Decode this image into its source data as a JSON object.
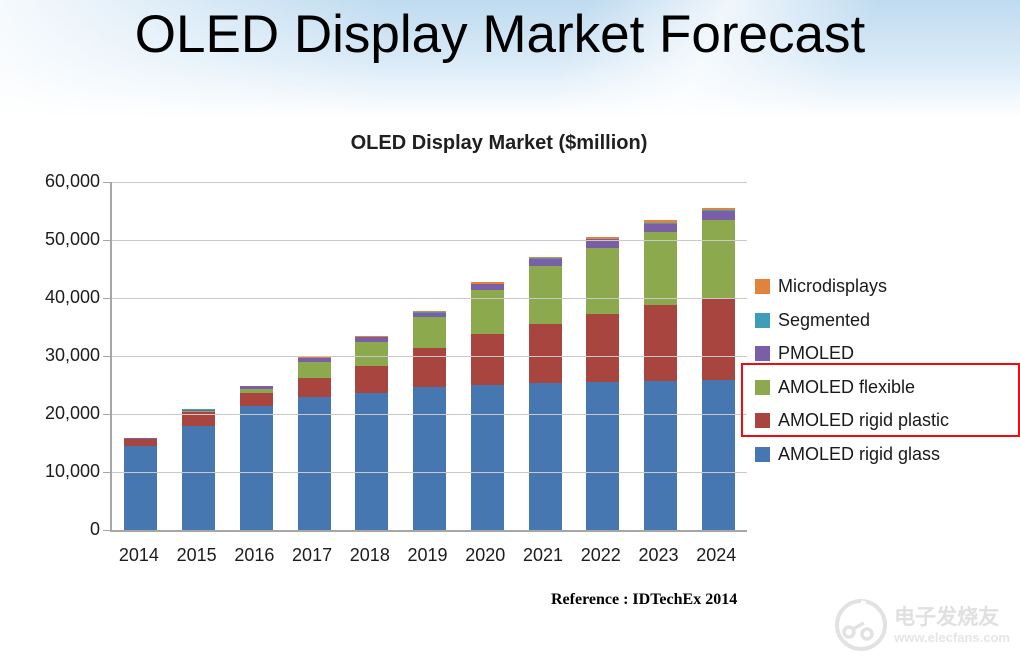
{
  "slide": {
    "title": "OLED Display Market Forecast"
  },
  "chart_data": {
    "type": "bar",
    "stacked": true,
    "title": "OLED Display Market ($million)",
    "categories": [
      "2014",
      "2015",
      "2016",
      "2017",
      "2018",
      "2019",
      "2020",
      "2021",
      "2022",
      "2023",
      "2024"
    ],
    "series": [
      {
        "name": "AMOLED rigid glass",
        "color": "#4777B1",
        "values": [
          14500,
          17900,
          21300,
          22900,
          23600,
          24600,
          25000,
          25400,
          25600,
          25700,
          25900
        ]
      },
      {
        "name": "AMOLED rigid plastic",
        "color": "#A9453F",
        "values": [
          1150,
          2450,
          2400,
          3300,
          4700,
          6700,
          8800,
          10100,
          11700,
          13100,
          14100
        ]
      },
      {
        "name": "AMOLED flexible",
        "color": "#8DA94E",
        "values": [
          0,
          100,
          600,
          2700,
          4200,
          5400,
          7500,
          10100,
          11400,
          12600,
          13500
        ]
      },
      {
        "name": "PMOLED",
        "color": "#7B5FA6",
        "values": [
          150,
          300,
          450,
          700,
          700,
          800,
          1100,
          1200,
          1400,
          1450,
          1500
        ]
      },
      {
        "name": "Segmented",
        "color": "#3E9DB9",
        "values": [
          25,
          50,
          50,
          50,
          75,
          75,
          100,
          100,
          100,
          100,
          100
        ]
      },
      {
        "name": "Microdisplays",
        "color": "#E2833B",
        "values": [
          25,
          50,
          100,
          150,
          150,
          150,
          200,
          200,
          250,
          450,
          500
        ]
      }
    ],
    "ylim": [
      0,
      60000
    ],
    "ytick_interval": 10000,
    "y_tick_labels_top_to_bottom": [
      "60,000",
      "50,000",
      "40,000",
      "30,000",
      "20,000",
      "10,000",
      "0"
    ],
    "grid": true,
    "legend_position": "right",
    "legend_order_top_to_bottom": [
      "Microdisplays",
      "Segmented",
      "PMOLED",
      "AMOLED flexible",
      "AMOLED rigid plastic",
      "AMOLED rigid glass"
    ],
    "legend_highlight": {
      "items": [
        "AMOLED flexible",
        "AMOLED rigid plastic"
      ],
      "box_color": "#F10D0D"
    }
  },
  "footer": {
    "reference": "Reference : IDTechEx 2014"
  },
  "watermark": {
    "brand": "电子发烧友",
    "url": "www.elecfans.com"
  }
}
